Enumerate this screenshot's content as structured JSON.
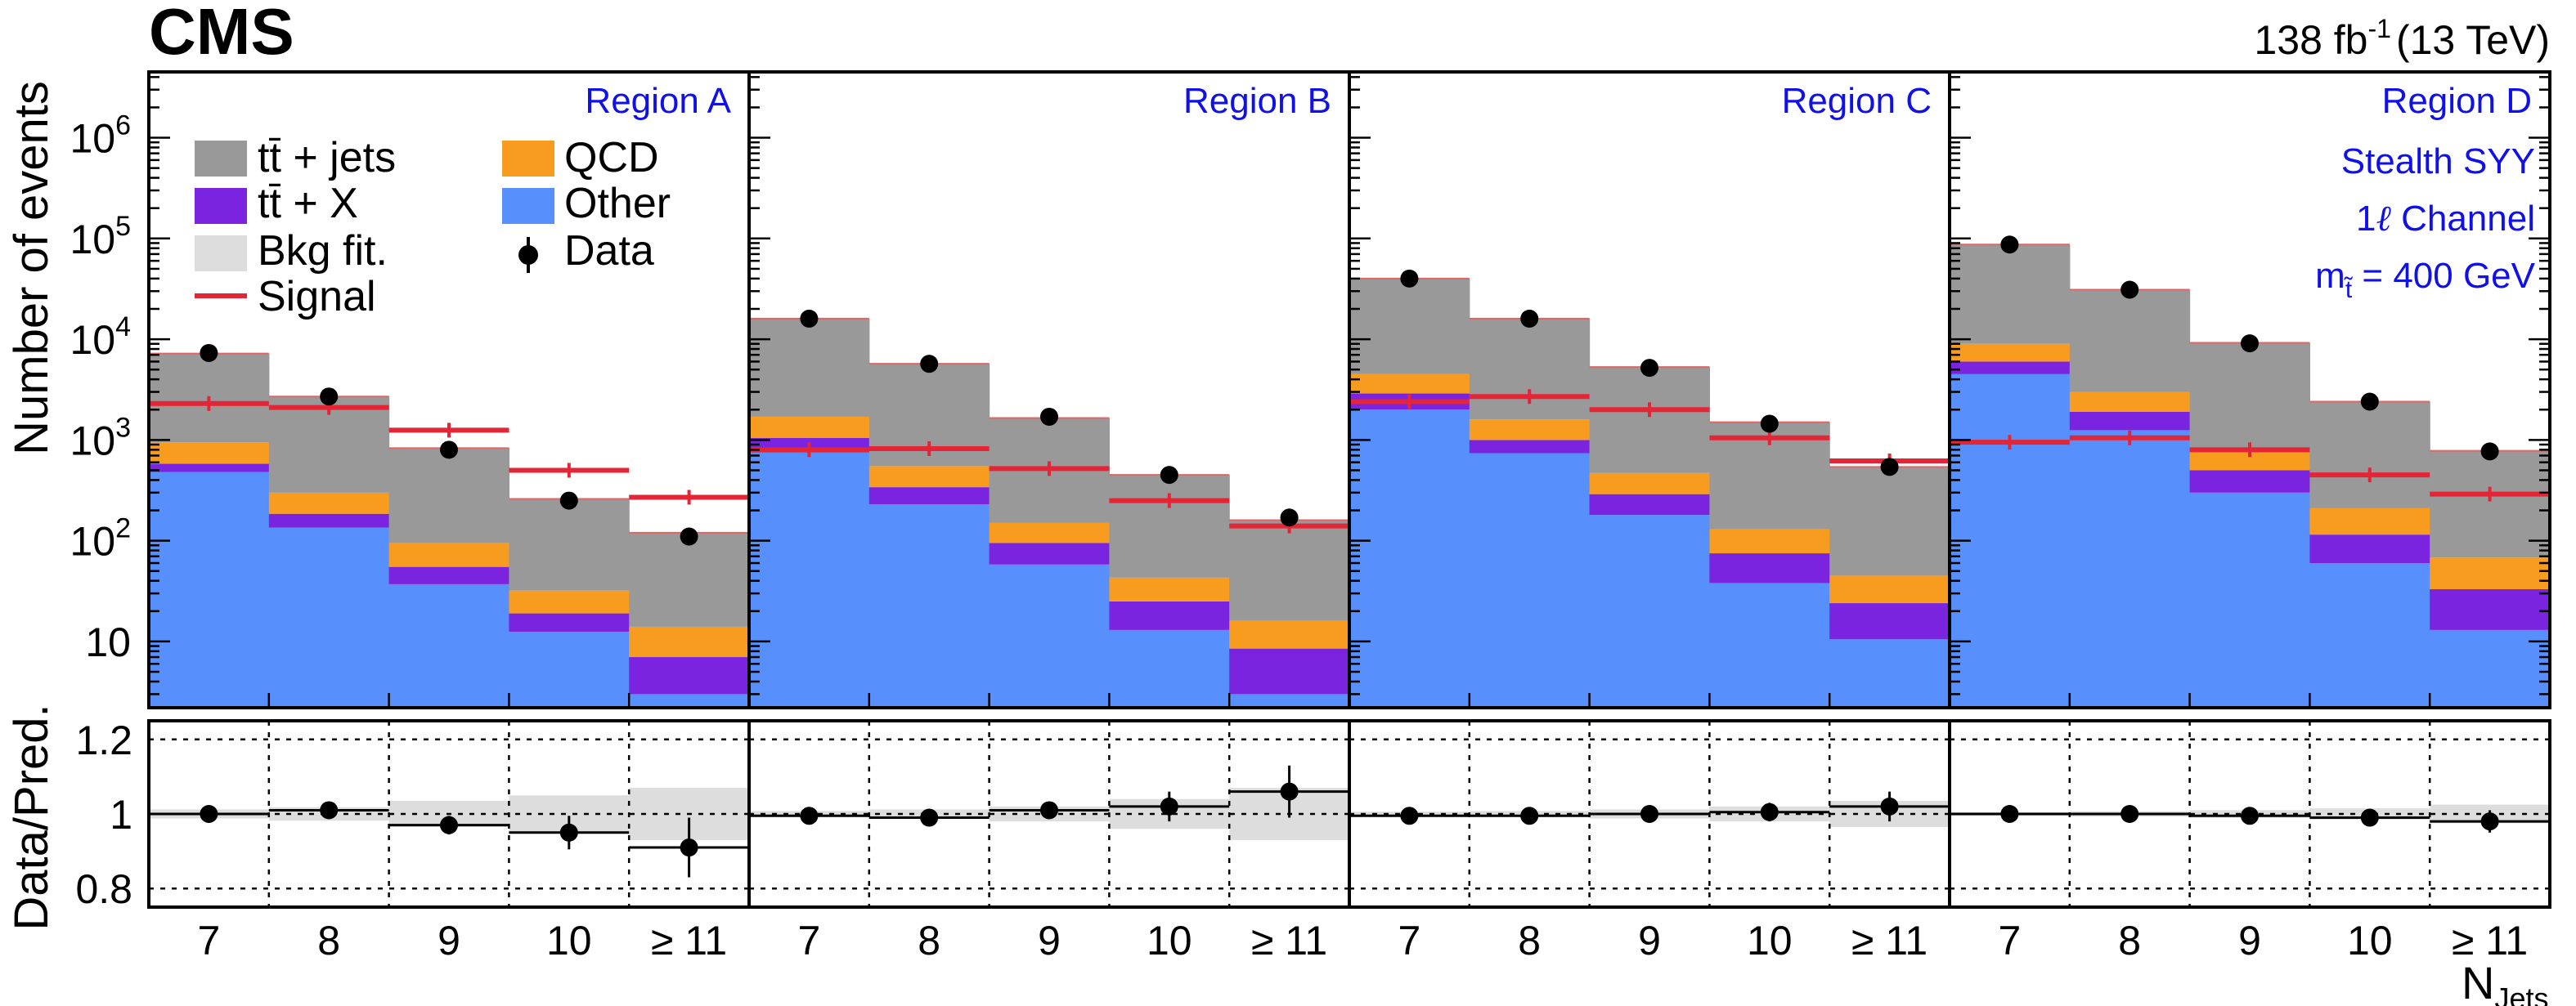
{
  "header": {
    "experiment": "CMS",
    "lumi_value": "138 fb",
    "lumi_exponent": "-1",
    "energy": "(13 TeV)"
  },
  "legend": {
    "ttjets": "tt̄ + jets",
    "ttx": "tt̄ + X",
    "bkgfit": "Bkg fit.",
    "signal": "Signal",
    "qcd": "QCD",
    "other": "Other",
    "data": "Data"
  },
  "annotations": {
    "model": "Stealth SYY",
    "channel_prefix": "1",
    "channel_ell": "ℓ",
    "channel_suffix": " Channel",
    "mass_m": "m",
    "mass_sub": "t̃",
    "mass_value": " = 400 GeV"
  },
  "colors": {
    "ttjets": "#999999",
    "ttx": "#7a24e0",
    "qcd": "#f89c20",
    "other": "#5790fc",
    "signal": "#e42536",
    "fit_band": "#dddddd",
    "data": "#000000",
    "region_label": "#1010e8"
  },
  "chart_data": {
    "type": "bar",
    "stacked": true,
    "title": "CMS",
    "ylabel": "Number of events",
    "ratio_ylabel": "Data/Pred.",
    "xlabel": "N",
    "xlabel_sub": "Jets",
    "yscale": "log",
    "ylim": [
      2.2,
      4500000
    ],
    "yticks": [
      {
        "value": 10,
        "base": "10",
        "exp": ""
      },
      {
        "value": 100,
        "base": "10",
        "exp": "2"
      },
      {
        "value": 1000,
        "base": "10",
        "exp": "3"
      },
      {
        "value": 10000,
        "base": "10",
        "exp": "4"
      },
      {
        "value": 100000,
        "base": "10",
        "exp": "5"
      },
      {
        "value": 1000000,
        "base": "10",
        "exp": "6"
      }
    ],
    "ratio_ylim": [
      0.75,
      1.25
    ],
    "ratio_yticks": [
      {
        "value": 0.8,
        "label": "0.8"
      },
      {
        "value": 1.0,
        "label": "1"
      },
      {
        "value": 1.2,
        "label": "1.2"
      }
    ],
    "categories": [
      "7",
      "8",
      "9",
      "10",
      "≥ 11"
    ],
    "regions": [
      {
        "name": "Region A",
        "other": [
          480,
          135,
          37,
          12.5,
          3
        ],
        "ttx": [
          580,
          185,
          55,
          19,
          7
        ],
        "qcd": [
          950,
          300,
          95,
          32,
          14
        ],
        "total": [
          7200,
          2700,
          830,
          260,
          120
        ],
        "signal": [
          2300,
          2100,
          1250,
          500,
          270
        ],
        "data": [
          7300,
          2700,
          800,
          250,
          110
        ],
        "ratio": [
          1.0,
          1.01,
          0.97,
          0.95,
          0.91
        ],
        "ratio_err": [
          0.01,
          0.015,
          0.025,
          0.045,
          0.08
        ],
        "fit_band": [
          0.012,
          0.018,
          0.035,
          0.05,
          0.07
        ]
      },
      {
        "name": "Region B",
        "other": [
          750,
          230,
          58,
          13,
          3
        ],
        "ttx": [
          1050,
          340,
          95,
          25,
          8.5
        ],
        "qcd": [
          1700,
          550,
          150,
          43,
          16
        ],
        "total": [
          16000,
          5700,
          1650,
          450,
          160
        ],
        "signal": [
          800,
          820,
          520,
          250,
          140
        ],
        "data": [
          16000,
          5700,
          1700,
          450,
          170
        ],
        "ratio": [
          0.995,
          0.99,
          1.01,
          1.02,
          1.06
        ],
        "ratio_err": [
          0.01,
          0.01,
          0.02,
          0.04,
          0.07
        ],
        "fit_band": [
          0.008,
          0.012,
          0.02,
          0.04,
          0.07
        ]
      },
      {
        "name": "Region C",
        "other": [
          2000,
          740,
          180,
          38,
          10.5
        ],
        "ttx": [
          2900,
          1000,
          290,
          75,
          24
        ],
        "qcd": [
          4500,
          1600,
          470,
          130,
          45
        ],
        "total": [
          40000,
          16000,
          5300,
          1500,
          540
        ],
        "signal": [
          2400,
          2700,
          2000,
          1050,
          620
        ],
        "data": [
          40000,
          16000,
          5200,
          1450,
          540
        ],
        "ratio": [
          0.995,
          0.995,
          1.0,
          1.005,
          1.02
        ],
        "ratio_err": [
          0.008,
          0.008,
          0.015,
          0.025,
          0.04
        ],
        "fit_band": [
          0.006,
          0.008,
          0.012,
          0.02,
          0.035
        ]
      },
      {
        "name": "Region D",
        "other": [
          4500,
          1250,
          300,
          60,
          13
        ],
        "ttx": [
          6000,
          1900,
          500,
          115,
          33
        ],
        "qcd": [
          9000,
          3000,
          800,
          210,
          68
        ],
        "total": [
          87000,
          31000,
          9200,
          2400,
          780
        ],
        "signal": [
          950,
          1050,
          800,
          450,
          290
        ],
        "data": [
          87000,
          31000,
          9100,
          2400,
          770
        ],
        "ratio": [
          1.0,
          1.0,
          0.995,
          0.99,
          0.98
        ],
        "ratio_err": [
          0.005,
          0.006,
          0.01,
          0.02,
          0.03
        ],
        "fit_band": [
          0.005,
          0.007,
          0.01,
          0.015,
          0.025
        ]
      }
    ]
  }
}
